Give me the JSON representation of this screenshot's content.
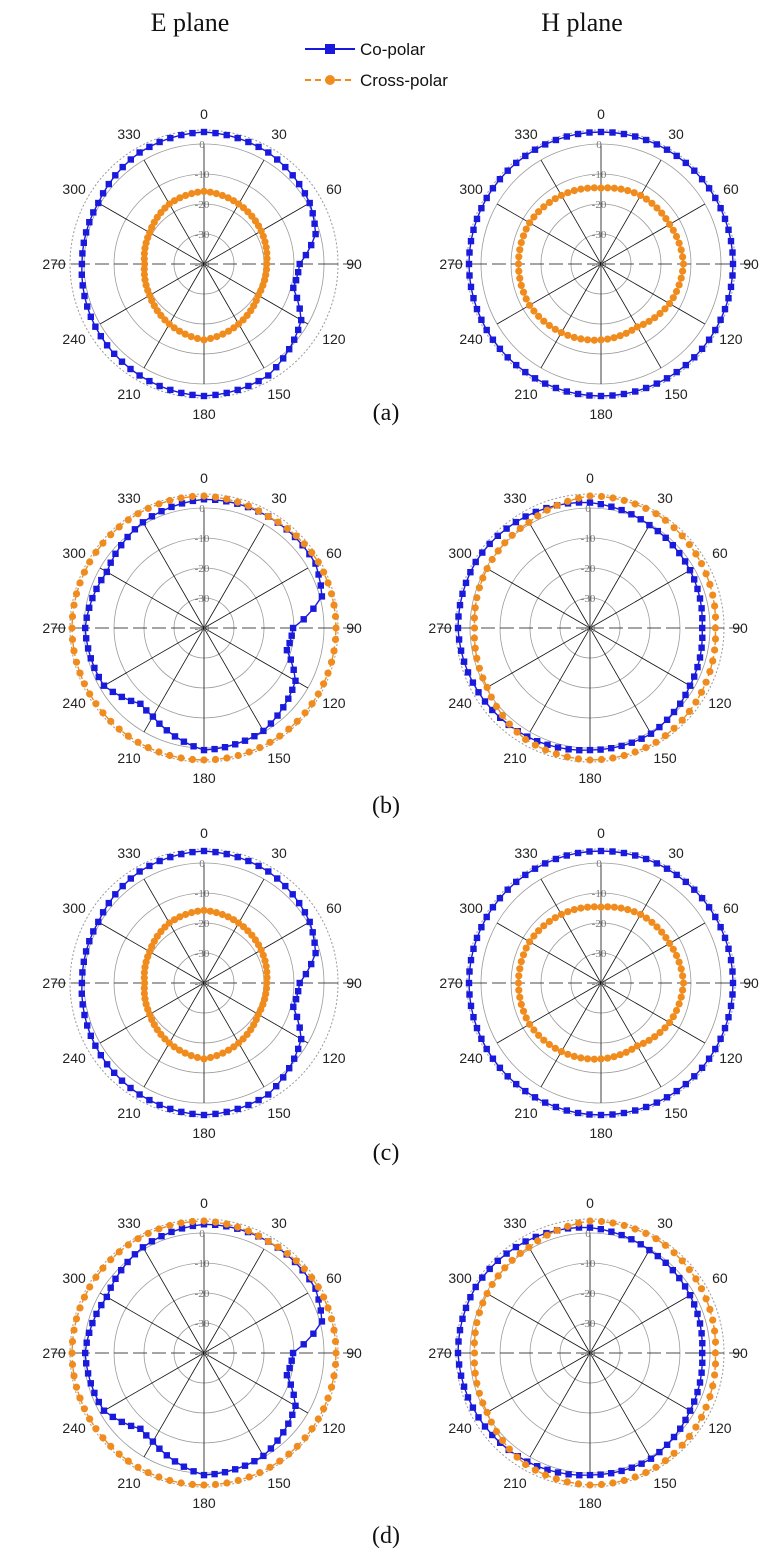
{
  "figure": {
    "column_titles": [
      "E plane",
      "H plane"
    ],
    "legend": [
      {
        "label": "Co-polar",
        "color": "#1a1adc",
        "marker": "square",
        "line": "solid"
      },
      {
        "label": "Cross-polar",
        "color": "#f08c1e",
        "marker": "circle",
        "line": "dashed"
      }
    ],
    "panel_labels": [
      "(a)",
      "(b)",
      "(c)",
      "(d)"
    ]
  },
  "colors": {
    "co_polar": "#1a1adc",
    "cross_polar": "#f08c1e",
    "grid": "#9a9a9a",
    "spoke": "#111111"
  },
  "chart_data": [
    {
      "type": "polar",
      "panel": "(a)",
      "plane": "E plane",
      "angle_labels": [
        "0",
        "30",
        "60",
        "90",
        "120",
        "150",
        "180",
        "210",
        "240",
        "270",
        "300",
        "330"
      ],
      "radial_ticks": [
        "0",
        "-10",
        "-20",
        "-30",
        "-40"
      ],
      "rlim": [
        -40,
        0
      ],
      "series": [
        {
          "name": "Co-polar",
          "angles": [
            0,
            30,
            60,
            75,
            90,
            105,
            120,
            150,
            180,
            210,
            240,
            270,
            300,
            330
          ],
          "values": [
            0,
            -1,
            -3,
            -5,
            -11,
            -12,
            -6,
            -1,
            0,
            -1,
            -2,
            -3,
            -3,
            -1
          ]
        },
        {
          "name": "Cross-polar",
          "angles": [
            0,
            30,
            60,
            90,
            120,
            150,
            180,
            210,
            240,
            270,
            300,
            330
          ],
          "values": [
            -18,
            -19,
            -20,
            -21,
            -21,
            -19,
            -17,
            -19,
            -21,
            -22,
            -21,
            -19
          ]
        }
      ]
    },
    {
      "type": "polar",
      "panel": "(a)",
      "plane": "H plane",
      "angle_labels": [
        "0",
        "30",
        "60",
        "90",
        "120",
        "150",
        "180",
        "210",
        "240",
        "270",
        "300",
        "330"
      ],
      "radial_ticks": [
        "0",
        "-10",
        "-20",
        "-30",
        "-40"
      ],
      "rlim": [
        -40,
        0
      ],
      "series": [
        {
          "name": "Co-polar",
          "angles": [
            0,
            30,
            60,
            90,
            120,
            150,
            180,
            210,
            240,
            270,
            300,
            330
          ],
          "values": [
            0,
            0,
            0,
            0,
            0,
            0,
            0,
            0,
            0,
            0,
            0,
            0
          ]
        },
        {
          "name": "Cross-polar",
          "angles": [
            0,
            30,
            60,
            90,
            120,
            150,
            180,
            210,
            240,
            270,
            300,
            330
          ],
          "values": [
            -17,
            -16,
            -16,
            -15,
            -16,
            -18,
            -17,
            -16,
            -15,
            -15,
            -15,
            -16
          ]
        }
      ]
    },
    {
      "type": "polar",
      "panel": "(b)",
      "plane": "E plane",
      "angle_labels": [
        "0",
        "30",
        "60",
        "90",
        "120",
        "150",
        "180",
        "210",
        "240",
        "270",
        "300",
        "330"
      ],
      "radial_ticks": [
        "0",
        "-10",
        "-20",
        "-30",
        "-40"
      ],
      "rlim": [
        -40,
        0
      ],
      "series": [
        {
          "name": "Co-polar",
          "angles": [
            0,
            30,
            60,
            75,
            90,
            105,
            120,
            150,
            180,
            210,
            220,
            240,
            270,
            300,
            330
          ],
          "values": [
            -1,
            -1,
            -1,
            -3,
            -13,
            -14,
            -8,
            -4,
            -3,
            -9,
            -10,
            -5,
            -4,
            -6,
            -3
          ]
        },
        {
          "name": "Cross-polar",
          "angles": [
            0,
            30,
            60,
            90,
            120,
            150,
            180,
            210,
            240,
            270,
            300,
            330
          ],
          "values": [
            0,
            -1,
            0,
            0,
            0,
            0,
            0,
            0,
            0,
            0,
            0,
            0
          ]
        }
      ]
    },
    {
      "type": "polar",
      "panel": "(b)",
      "plane": "H plane",
      "angle_labels": [
        "0",
        "30",
        "60",
        "90",
        "120",
        "150",
        "180",
        "210",
        "240",
        "270",
        "300",
        "330"
      ],
      "radial_ticks": [
        "0",
        "-10",
        "-20",
        "-30",
        "-40"
      ],
      "rlim": [
        -40,
        0
      ],
      "series": [
        {
          "name": "Co-polar",
          "angles": [
            0,
            30,
            60,
            90,
            120,
            150,
            180,
            210,
            240,
            270,
            300,
            330
          ],
          "values": [
            -2,
            -4,
            -5,
            -6,
            -5,
            -3,
            -3,
            -2,
            -1,
            0,
            0,
            -1
          ]
        },
        {
          "name": "Cross-polar",
          "angles": [
            0,
            30,
            60,
            90,
            120,
            150,
            180,
            210,
            240,
            270,
            300,
            330
          ],
          "values": [
            0,
            0,
            -1,
            -2,
            -1,
            0,
            0,
            -1,
            -4,
            -5,
            -4,
            -3
          ]
        }
      ]
    },
    {
      "type": "polar",
      "panel": "(c)",
      "plane": "E plane",
      "angle_labels": [
        "0",
        "30",
        "60",
        "90",
        "120",
        "150",
        "180",
        "210",
        "240",
        "270",
        "300",
        "330"
      ],
      "radial_ticks": [
        "0",
        "-10",
        "-20",
        "-30",
        "-40"
      ],
      "rlim": [
        -40,
        0
      ],
      "series": [
        {
          "name": "Co-polar",
          "angles": [
            0,
            30,
            60,
            75,
            90,
            105,
            120,
            150,
            180,
            210,
            240,
            270,
            300,
            330
          ],
          "values": [
            0,
            -1,
            -3,
            -5,
            -11,
            -12,
            -6,
            -1,
            0,
            -1,
            -2,
            -3,
            -3,
            -1
          ]
        },
        {
          "name": "Cross-polar",
          "angles": [
            0,
            30,
            60,
            90,
            120,
            150,
            180,
            210,
            240,
            270,
            300,
            330
          ],
          "values": [
            -18,
            -19,
            -20,
            -21,
            -21,
            -19,
            -17,
            -19,
            -21,
            -22,
            -21,
            -19
          ]
        }
      ]
    },
    {
      "type": "polar",
      "panel": "(c)",
      "plane": "H plane",
      "angle_labels": [
        "0",
        "30",
        "60",
        "90",
        "120",
        "150",
        "180",
        "210",
        "240",
        "270",
        "300",
        "330"
      ],
      "radial_ticks": [
        "0",
        "-10",
        "-20",
        "-30",
        "-40"
      ],
      "rlim": [
        -40,
        0
      ],
      "series": [
        {
          "name": "Co-polar",
          "angles": [
            0,
            30,
            60,
            90,
            120,
            150,
            180,
            210,
            240,
            270,
            300,
            330
          ],
          "values": [
            0,
            0,
            0,
            0,
            0,
            0,
            0,
            0,
            0,
            0,
            0,
            0
          ]
        },
        {
          "name": "Cross-polar",
          "angles": [
            0,
            30,
            60,
            90,
            120,
            150,
            180,
            210,
            240,
            270,
            300,
            330
          ],
          "values": [
            -17,
            -16,
            -16,
            -15,
            -16,
            -18,
            -17,
            -16,
            -15,
            -15,
            -15,
            -16
          ]
        }
      ]
    },
    {
      "type": "polar",
      "panel": "(d)",
      "plane": "E plane",
      "angle_labels": [
        "0",
        "30",
        "60",
        "90",
        "120",
        "150",
        "180",
        "210",
        "240",
        "270",
        "300",
        "330"
      ],
      "radial_ticks": [
        "0",
        "-10",
        "-20",
        "-30",
        "-40"
      ],
      "rlim": [
        -40,
        0
      ],
      "series": [
        {
          "name": "Co-polar",
          "angles": [
            0,
            30,
            60,
            75,
            90,
            105,
            120,
            150,
            180,
            210,
            220,
            240,
            270,
            300,
            330
          ],
          "values": [
            -1,
            -1,
            -1,
            -3,
            -13,
            -14,
            -8,
            -4,
            -3,
            -9,
            -10,
            -5,
            -4,
            -6,
            -3
          ]
        },
        {
          "name": "Cross-polar",
          "angles": [
            0,
            30,
            60,
            90,
            120,
            150,
            180,
            210,
            240,
            270,
            300,
            330
          ],
          "values": [
            0,
            -1,
            0,
            0,
            0,
            0,
            0,
            0,
            0,
            0,
            0,
            0
          ]
        }
      ]
    },
    {
      "type": "polar",
      "panel": "(d)",
      "plane": "H plane",
      "angle_labels": [
        "0",
        "30",
        "60",
        "90",
        "120",
        "150",
        "180",
        "210",
        "240",
        "270",
        "300",
        "330"
      ],
      "radial_ticks": [
        "0",
        "-10",
        "-20",
        "-30",
        "-40"
      ],
      "rlim": [
        -40,
        0
      ],
      "series": [
        {
          "name": "Co-polar",
          "angles": [
            0,
            30,
            60,
            90,
            120,
            150,
            180,
            210,
            240,
            270,
            300,
            330
          ],
          "values": [
            -2,
            -4,
            -5,
            -6,
            -5,
            -3,
            -3,
            -2,
            -1,
            0,
            0,
            -1
          ]
        },
        {
          "name": "Cross-polar",
          "angles": [
            0,
            30,
            60,
            90,
            120,
            150,
            180,
            210,
            240,
            270,
            300,
            330
          ],
          "values": [
            0,
            0,
            -1,
            -2,
            -1,
            0,
            0,
            -1,
            -4,
            -5,
            -4,
            -3
          ]
        }
      ]
    }
  ]
}
